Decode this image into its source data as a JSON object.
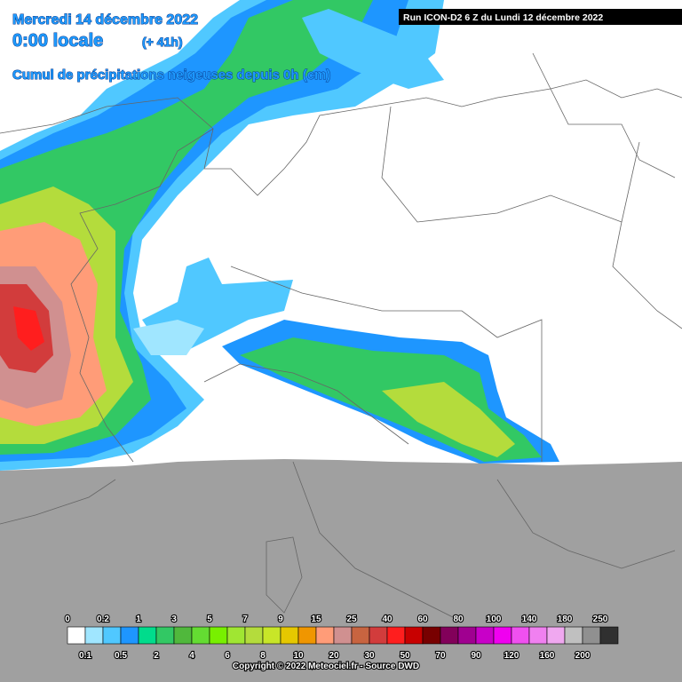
{
  "header": {
    "date": "Mercredi 14 décembre 2022",
    "time": "0:00 locale",
    "lead": "(+ 41h)",
    "subtitle": "Cumul de précipitations neigeuses depuis 0h (cm)",
    "run": "Run ICON-D2 6 Z du Lundi 12 décembre 2022"
  },
  "legend": {
    "thresholds": [
      0,
      0.1,
      0.2,
      0.5,
      1,
      2,
      3,
      4,
      5,
      6,
      7,
      8,
      9,
      10,
      15,
      20,
      25,
      30,
      40,
      50,
      60,
      70,
      80,
      90,
      100,
      120,
      140,
      160,
      180,
      200,
      250
    ],
    "colors": [
      "#ffffff",
      "#a0e6ff",
      "#50c8ff",
      "#1e96ff",
      "#00dc8c",
      "#32c864",
      "#50b83c",
      "#64dc32",
      "#78f000",
      "#a0e632",
      "#b4dc3c",
      "#c8e628",
      "#e6c800",
      "#f09600",
      "#ff9c78",
      "#d09090",
      "#c86440",
      "#d23c3c",
      "#ff1e1e",
      "#c80000",
      "#780000",
      "#82005a",
      "#a00090",
      "#c800c8",
      "#f000f0",
      "#f050f0",
      "#f080f0",
      "#f0a8f0",
      "#c0c0c0",
      "#909090",
      "#303030"
    ]
  },
  "footer": {
    "copyright": "Copyright © 2022 Meteociel.fr - Source DWD"
  }
}
